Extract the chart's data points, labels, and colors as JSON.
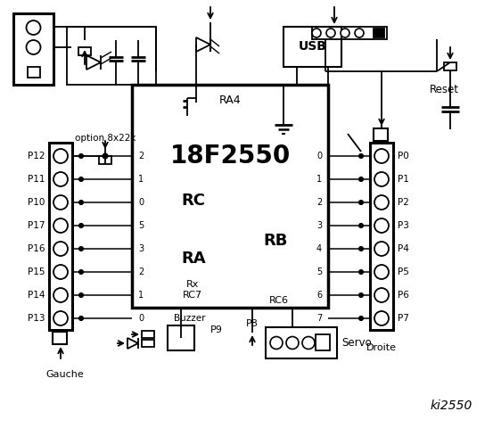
{
  "bg_color": "#ffffff",
  "chip_label": "18F2550",
  "chip_sublabel": "RA4",
  "rc_label": "RC",
  "ra_label": "RA",
  "rb_label": "RB",
  "left_pins": [
    "2",
    "1",
    "0",
    "5",
    "3",
    "2",
    "1",
    "0"
  ],
  "right_pins": [
    "0",
    "1",
    "2",
    "3",
    "4",
    "5",
    "6",
    "7"
  ],
  "left_labels": [
    "P12",
    "P11",
    "P10",
    "P17",
    "P16",
    "P15",
    "P14",
    "P13"
  ],
  "right_labels": [
    "P0",
    "P1",
    "P2",
    "P3",
    "P4",
    "P5",
    "P6",
    "P7"
  ],
  "gauche_label": "Gauche",
  "droite_label": "Droite",
  "rc6_label": "RC6",
  "usb_label": "USB",
  "reset_label": "Reset",
  "option_label": "option 8x22k",
  "ki2550_label": "ki2550",
  "buzzer_label": "Buzzer",
  "p9_label": "P9",
  "p8_label": "P8",
  "servo_label": "Servo"
}
